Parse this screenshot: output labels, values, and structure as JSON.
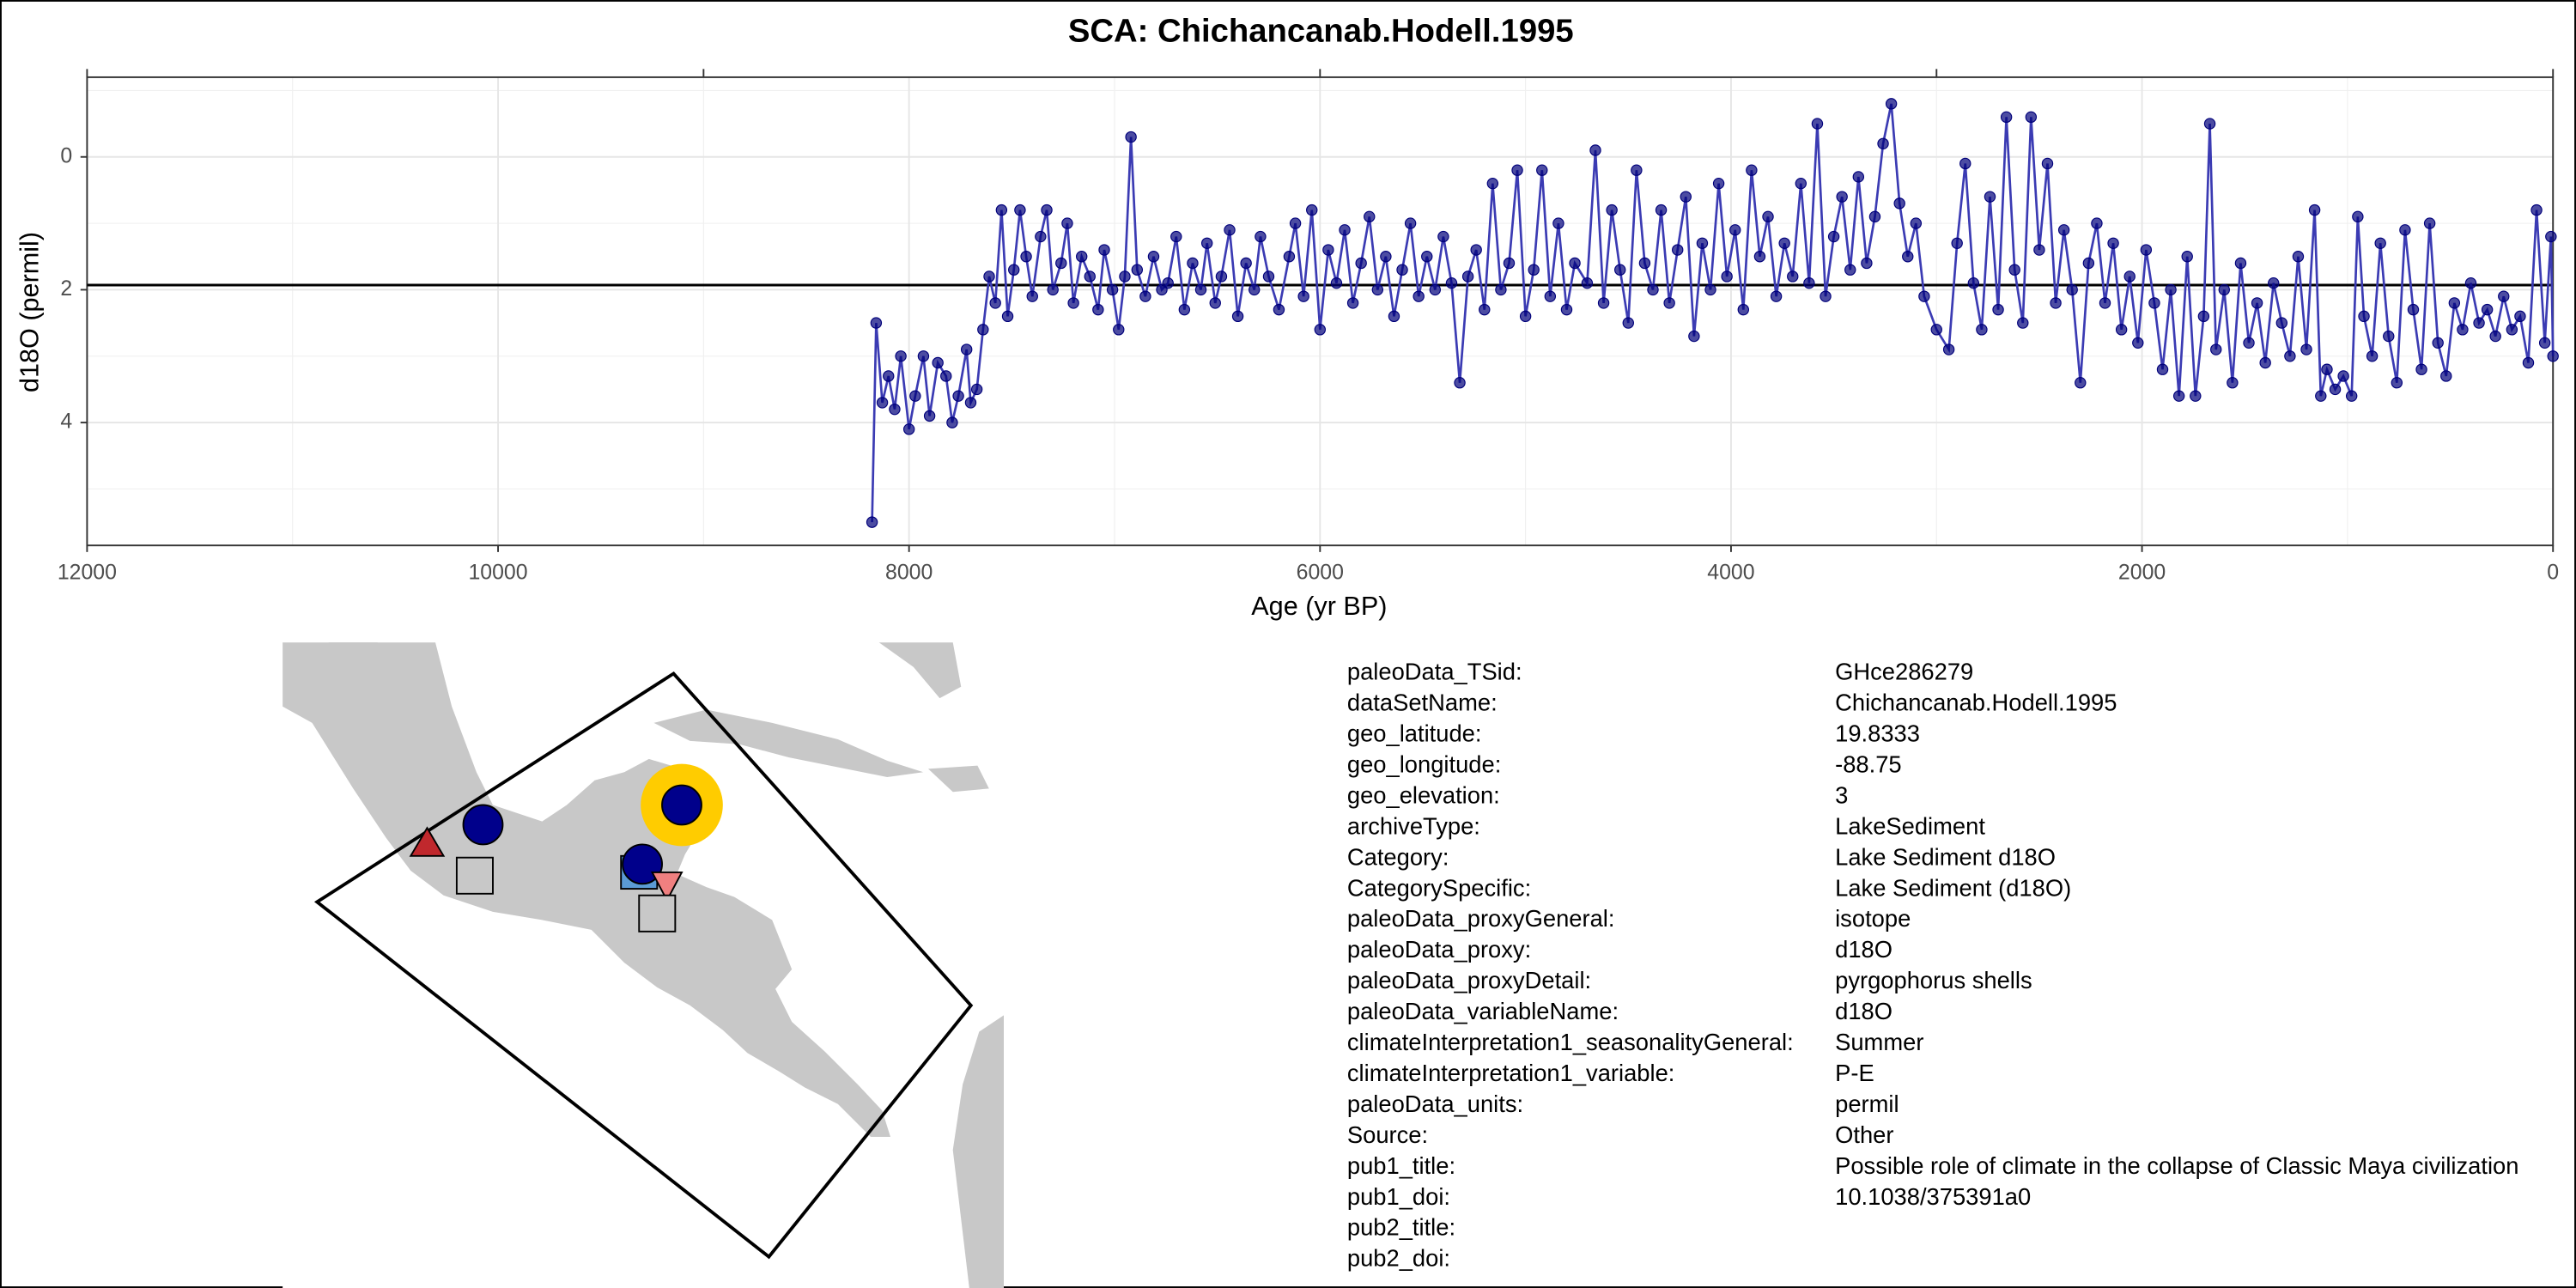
{
  "chart_data": {
    "type": "line",
    "title": "SCA: Chichancanab.Hodell.1995",
    "x_label": "Age (yr BP)",
    "y_label": "d18O (permil)",
    "xlim": [
      12000,
      0
    ],
    "ylim": [
      5.85,
      -1.2
    ],
    "xticks": [
      12000,
      10000,
      8000,
      6000,
      4000,
      2000,
      0
    ],
    "x_minor_grid": [
      11000,
      9000,
      7000,
      5000,
      3000,
      1000
    ],
    "top_ticks": [
      12000,
      9000,
      6000,
      3000,
      0
    ],
    "yticks": [
      0,
      2,
      4
    ],
    "y_minor_grid": [
      -1,
      1,
      3,
      5
    ],
    "grid": true,
    "hline": 1.93,
    "color": "#3b3bb3",
    "point_color": "#00007a",
    "x": [
      8180,
      8160,
      8130,
      8100,
      8070,
      8040,
      8000,
      7970,
      7930,
      7900,
      7860,
      7820,
      7790,
      7760,
      7720,
      7700,
      7670,
      7640,
      7610,
      7580,
      7550,
      7520,
      7490,
      7460,
      7430,
      7400,
      7360,
      7330,
      7300,
      7260,
      7230,
      7200,
      7160,
      7120,
      7080,
      7050,
      7010,
      6980,
      6950,
      6920,
      6890,
      6850,
      6810,
      6770,
      6740,
      6700,
      6660,
      6620,
      6580,
      6550,
      6510,
      6480,
      6440,
      6400,
      6360,
      6320,
      6290,
      6250,
      6200,
      6150,
      6120,
      6080,
      6040,
      6000,
      5960,
      5920,
      5880,
      5840,
      5800,
      5760,
      5720,
      5680,
      5640,
      5600,
      5560,
      5520,
      5480,
      5440,
      5400,
      5360,
      5320,
      5280,
      5240,
      5200,
      5160,
      5120,
      5080,
      5040,
      5000,
      4960,
      4920,
      4880,
      4840,
      4800,
      4760,
      4700,
      4660,
      4620,
      4580,
      4540,
      4500,
      4460,
      4420,
      4380,
      4340,
      4300,
      4260,
      4220,
      4180,
      4140,
      4100,
      4060,
      4020,
      3980,
      3940,
      3900,
      3860,
      3820,
      3780,
      3740,
      3700,
      3660,
      3620,
      3580,
      3540,
      3500,
      3460,
      3420,
      3380,
      3340,
      3300,
      3260,
      3220,
      3180,
      3140,
      3100,
      3060,
      3000,
      2940,
      2900,
      2860,
      2820,
      2780,
      2740,
      2700,
      2660,
      2620,
      2580,
      2540,
      2500,
      2460,
      2420,
      2380,
      2340,
      2300,
      2260,
      2220,
      2180,
      2140,
      2100,
      2060,
      2020,
      1980,
      1940,
      1900,
      1860,
      1820,
      1780,
      1740,
      1700,
      1670,
      1640,
      1600,
      1560,
      1520,
      1480,
      1440,
      1400,
      1360,
      1320,
      1280,
      1240,
      1200,
      1160,
      1130,
      1100,
      1060,
      1020,
      980,
      950,
      920,
      880,
      840,
      800,
      760,
      720,
      680,
      640,
      600,
      560,
      520,
      480,
      440,
      400,
      360,
      320,
      280,
      240,
      200,
      160,
      120,
      80,
      40,
      10,
      0
    ],
    "values": [
      5.5,
      2.5,
      3.7,
      3.3,
      3.8,
      3.0,
      4.1,
      3.6,
      3.0,
      3.9,
      3.1,
      3.3,
      4.0,
      3.6,
      2.9,
      3.7,
      3.5,
      2.6,
      1.8,
      2.2,
      0.8,
      2.4,
      1.7,
      0.8,
      1.5,
      2.1,
      1.2,
      0.8,
      2.0,
      1.6,
      1.0,
      2.2,
      1.5,
      1.8,
      2.3,
      1.4,
      2.0,
      2.6,
      1.8,
      -0.3,
      1.7,
      2.1,
      1.5,
      2.0,
      1.9,
      1.2,
      2.3,
      1.6,
      2.0,
      1.3,
      2.2,
      1.8,
      1.1,
      2.4,
      1.6,
      2.0,
      1.2,
      1.8,
      2.3,
      1.5,
      1.0,
      2.1,
      0.8,
      2.6,
      1.4,
      1.9,
      1.1,
      2.2,
      1.6,
      0.9,
      2.0,
      1.5,
      2.4,
      1.7,
      1.0,
      2.1,
      1.5,
      2.0,
      1.2,
      1.9,
      3.4,
      1.8,
      1.4,
      2.3,
      0.4,
      2.0,
      1.6,
      0.2,
      2.4,
      1.7,
      0.2,
      2.1,
      1.0,
      2.3,
      1.6,
      1.9,
      -0.1,
      2.2,
      0.8,
      1.7,
      2.5,
      0.2,
      1.6,
      2.0,
      0.8,
      2.2,
      1.4,
      0.6,
      2.7,
      1.3,
      2.0,
      0.4,
      1.8,
      1.1,
      2.3,
      0.2,
      1.5,
      0.9,
      2.1,
      1.3,
      1.8,
      0.4,
      1.9,
      -0.5,
      2.1,
      1.2,
      0.6,
      1.7,
      0.3,
      1.6,
      0.9,
      -0.2,
      -0.8,
      0.7,
      1.5,
      1.0,
      2.1,
      2.6,
      2.9,
      1.3,
      0.1,
      1.9,
      2.6,
      0.6,
      2.3,
      -0.6,
      1.7,
      2.5,
      -0.6,
      1.4,
      0.1,
      2.2,
      1.1,
      2.0,
      3.4,
      1.6,
      1.0,
      2.2,
      1.3,
      2.6,
      1.8,
      2.8,
      1.4,
      2.2,
      3.2,
      2.0,
      3.6,
      1.5,
      3.6,
      2.4,
      -0.5,
      2.9,
      2.0,
      3.4,
      1.6,
      2.8,
      2.2,
      3.1,
      1.9,
      2.5,
      3.0,
      1.5,
      2.9,
      0.8,
      3.6,
      3.2,
      3.5,
      3.3,
      3.6,
      0.9,
      2.4,
      3.0,
      1.3,
      2.7,
      3.4,
      1.1,
      2.3,
      3.2,
      1.0,
      2.8,
      3.3,
      2.2,
      2.6,
      1.9,
      2.5,
      2.3,
      2.7,
      2.1,
      2.6,
      2.4,
      3.1,
      0.8,
      2.8,
      1.2,
      3.0
    ]
  },
  "metadata": {
    "rows": [
      [
        "paleoData_TSid:",
        "GHce286279"
      ],
      [
        "dataSetName:",
        "Chichancanab.Hodell.1995"
      ],
      [
        "geo_latitude:",
        "19.8333"
      ],
      [
        "geo_longitude:",
        "-88.75"
      ],
      [
        "geo_elevation:",
        "3"
      ],
      [
        "archiveType:",
        "LakeSediment"
      ],
      [
        "Category:",
        "Lake Sediment d18O"
      ],
      [
        "CategorySpecific:",
        "Lake Sediment (d18O)"
      ],
      [
        "paleoData_proxyGeneral:",
        "isotope"
      ],
      [
        "paleoData_proxy:",
        "d18O"
      ],
      [
        "paleoData_proxyDetail:",
        "pyrgophorus shells"
      ],
      [
        "paleoData_variableName:",
        "d18O"
      ],
      [
        "climateInterpretation1_seasonalityGeneral:",
        "Summer"
      ],
      [
        "climateInterpretation1_variable:",
        "P-E"
      ],
      [
        "paleoData_units:",
        "permil"
      ],
      [
        "Source:",
        "Other"
      ],
      [
        "pub1_title:",
        "Possible role of climate in the collapse of Classic Maya civilization"
      ],
      [
        "pub1_doi:",
        "10.1038/375391a0"
      ],
      [
        "pub2_title:"
      ],
      [
        "pub2_doi:"
      ]
    ]
  }
}
